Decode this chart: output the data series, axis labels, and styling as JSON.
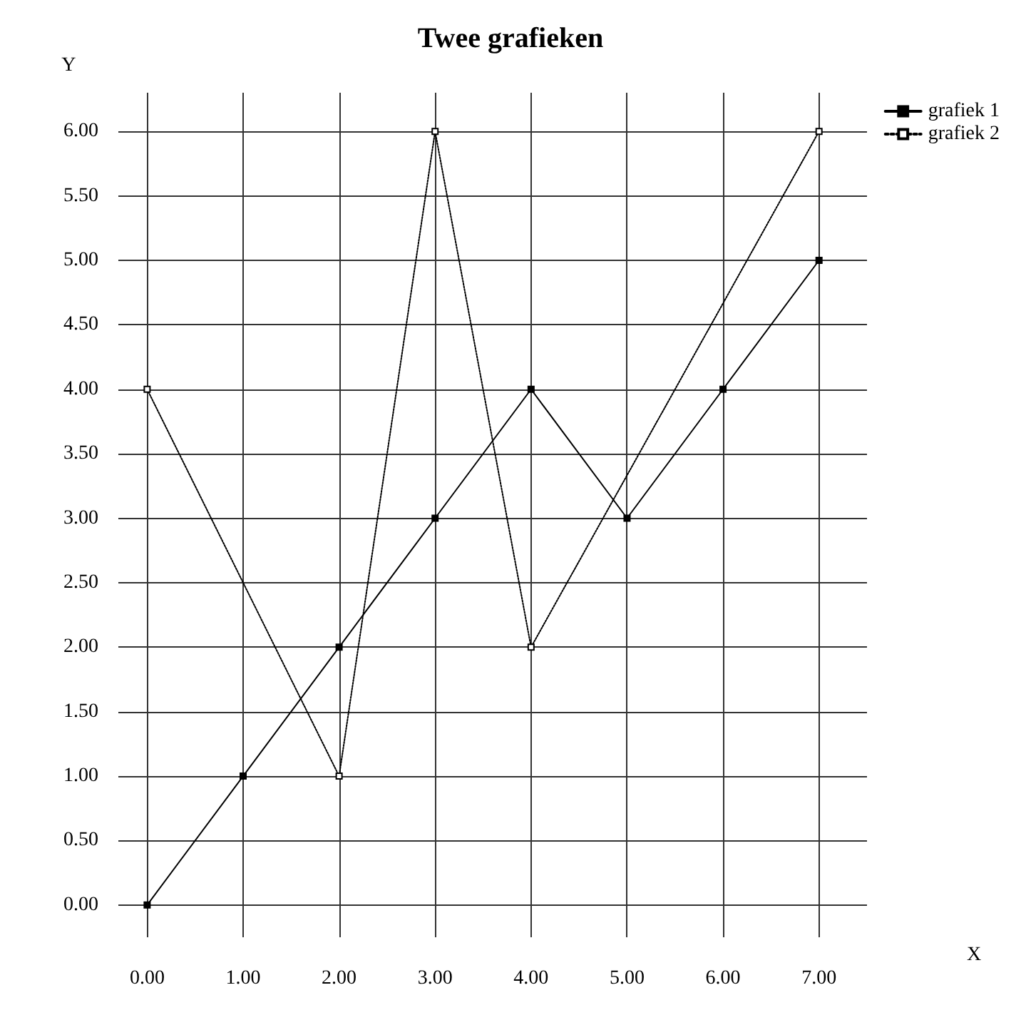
{
  "chart_data": {
    "type": "line",
    "title": "Twee grafieken",
    "xlabel": "X",
    "ylabel": "Y",
    "xlim": [
      -0.3,
      7.5
    ],
    "ylim": [
      -0.25,
      6.3
    ],
    "xticks": [
      {
        "value": 0,
        "label": "0.00"
      },
      {
        "value": 1,
        "label": "1.00"
      },
      {
        "value": 2,
        "label": "2.00"
      },
      {
        "value": 3,
        "label": "3.00"
      },
      {
        "value": 4,
        "label": "4.00"
      },
      {
        "value": 5,
        "label": "5.00"
      },
      {
        "value": 6,
        "label": "6.00"
      },
      {
        "value": 7,
        "label": "7.00"
      }
    ],
    "yticks": [
      {
        "value": 0,
        "label": "0.00"
      },
      {
        "value": 0.5,
        "label": "0.50"
      },
      {
        "value": 1,
        "label": "1.00"
      },
      {
        "value": 1.5,
        "label": "1.50"
      },
      {
        "value": 2,
        "label": "2.00"
      },
      {
        "value": 2.5,
        "label": "2.50"
      },
      {
        "value": 3,
        "label": "3.00"
      },
      {
        "value": 3.5,
        "label": "3.50"
      },
      {
        "value": 4,
        "label": "4.00"
      },
      {
        "value": 4.5,
        "label": "4.50"
      },
      {
        "value": 5,
        "label": "5.00"
      },
      {
        "value": 5.5,
        "label": "5.50"
      },
      {
        "value": 6,
        "label": "6.00"
      }
    ],
    "grid": true,
    "legend": "top right",
    "marker": "square",
    "series": [
      {
        "name": "grafiek 1",
        "color": "#000000",
        "line_style": "solid",
        "x": [
          0,
          1,
          2,
          3,
          4,
          5,
          6,
          7
        ],
        "values": [
          0,
          1,
          2,
          3,
          4,
          3,
          4,
          5
        ]
      },
      {
        "name": "grafiek 2",
        "color": "#000000",
        "line_style": "dotted",
        "x": [
          0,
          2,
          3,
          4,
          7
        ],
        "values": [
          4,
          1,
          6,
          2,
          6
        ]
      }
    ]
  }
}
